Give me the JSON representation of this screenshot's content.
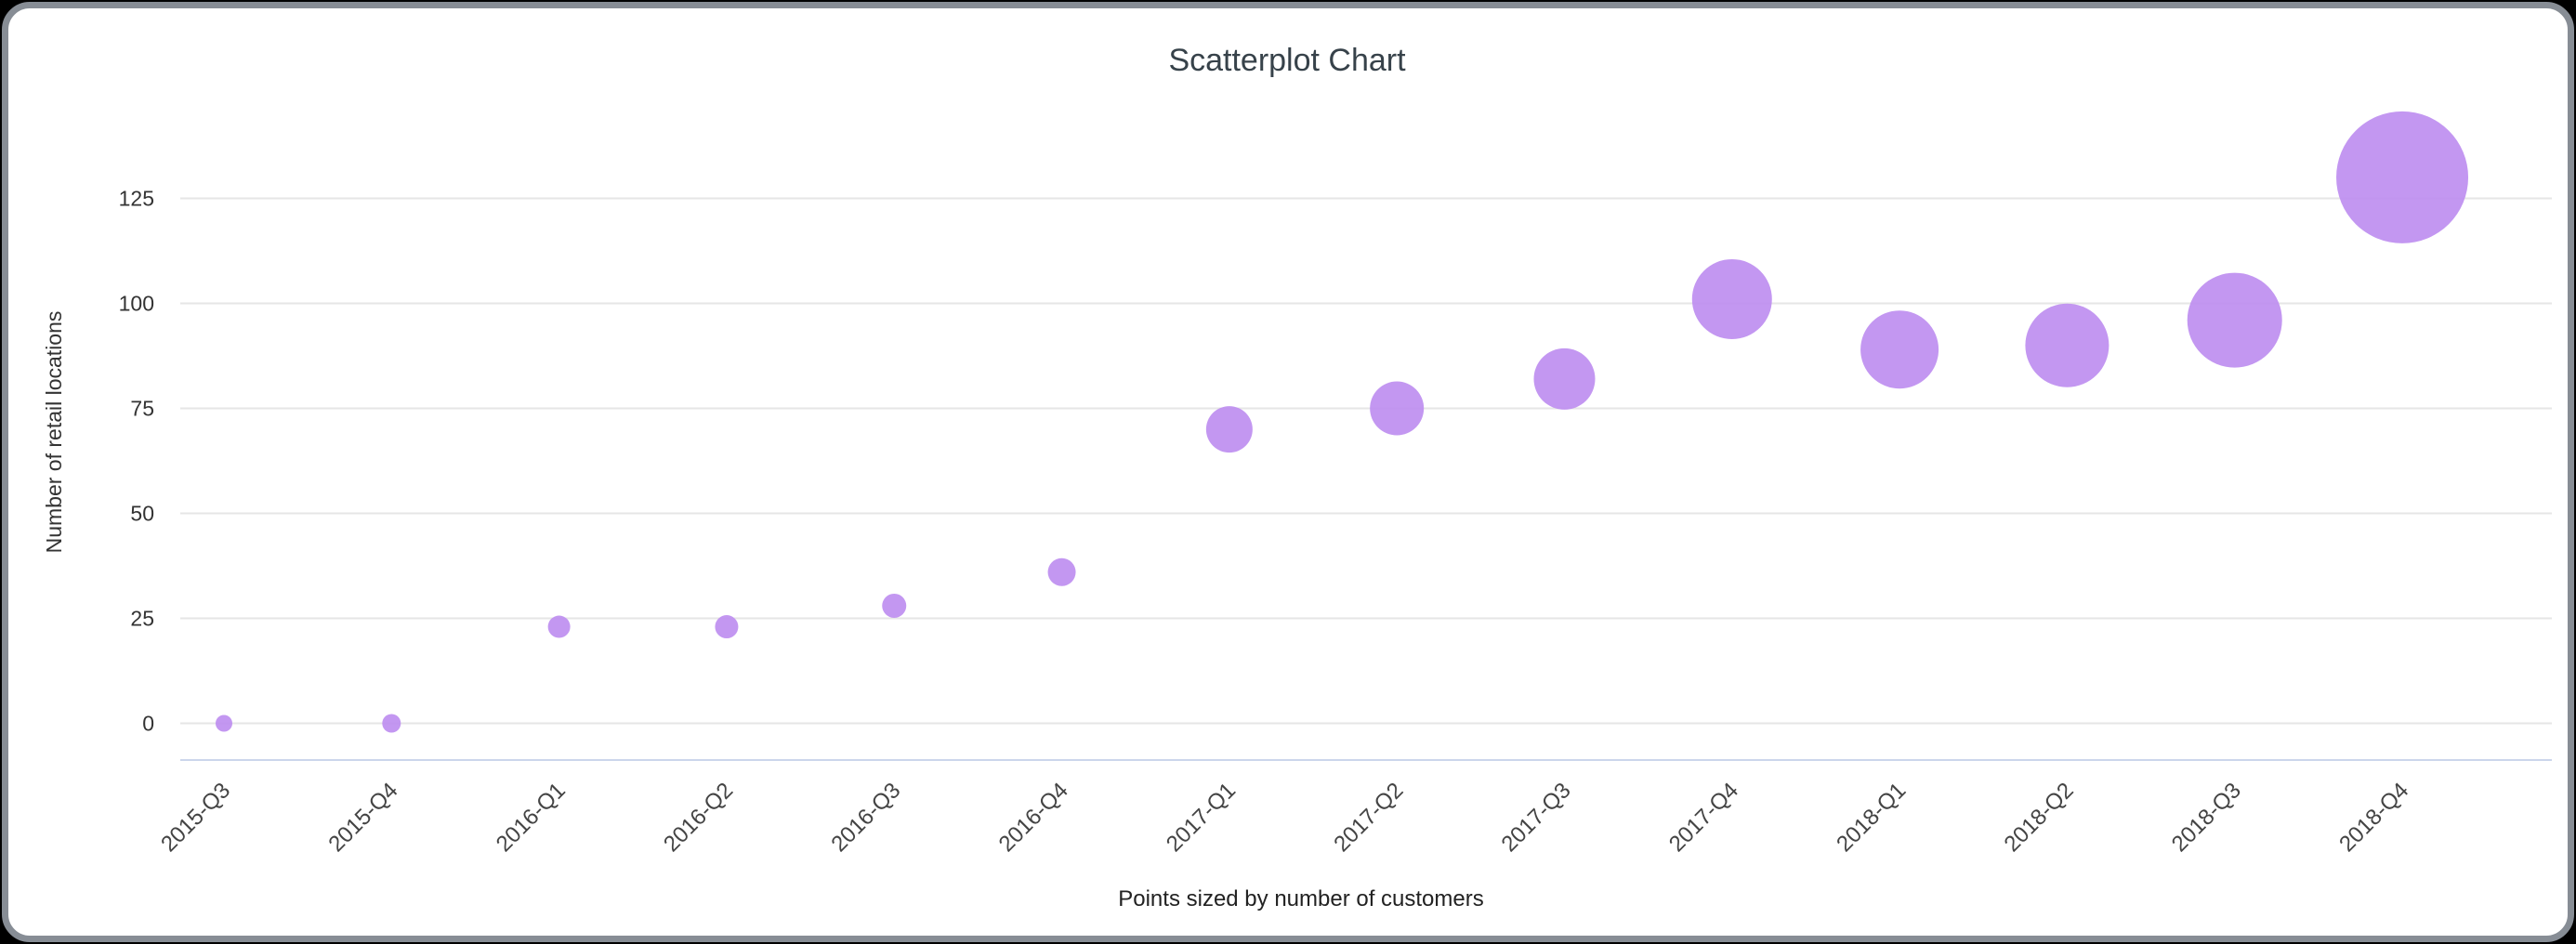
{
  "chart": {
    "title": "Scatterplot Chart",
    "y_axis_title": "Number of retail locations",
    "x_axis_title": "Points sized by number of customers"
  },
  "chart_data": {
    "type": "scatter",
    "title": "Scatterplot Chart",
    "xlabel": "Points sized by number of customers",
    "ylabel": "Number of retail locations",
    "categories": [
      "2015-Q3",
      "2015-Q4",
      "2016-Q1",
      "2016-Q2",
      "2016-Q3",
      "2016-Q4",
      "2017-Q1",
      "2017-Q2",
      "2017-Q3",
      "2017-Q4",
      "2018-Q1",
      "2018-Q2",
      "2018-Q3",
      "2018-Q4"
    ],
    "values": [
      0,
      0,
      23,
      23,
      28,
      36,
      70,
      75,
      82,
      101,
      89,
      90,
      96,
      130
    ],
    "point_radius_px": [
      9,
      10,
      12,
      12.5,
      13,
      15,
      25,
      29,
      33,
      43,
      42,
      45,
      51,
      71
    ],
    "size_note": "Points sized by number of customers",
    "yticks": [
      0,
      25,
      50,
      75,
      100,
      125
    ],
    "ylim": [
      0,
      140
    ],
    "grid": true,
    "legend": "none",
    "colors": {
      "bubble": "#bc8cf0",
      "gridline": "#e6e6e6",
      "axis_line": "#ccd6eb",
      "title": "#37424a",
      "tick_label": "#333333",
      "x_label": "#444444"
    }
  }
}
